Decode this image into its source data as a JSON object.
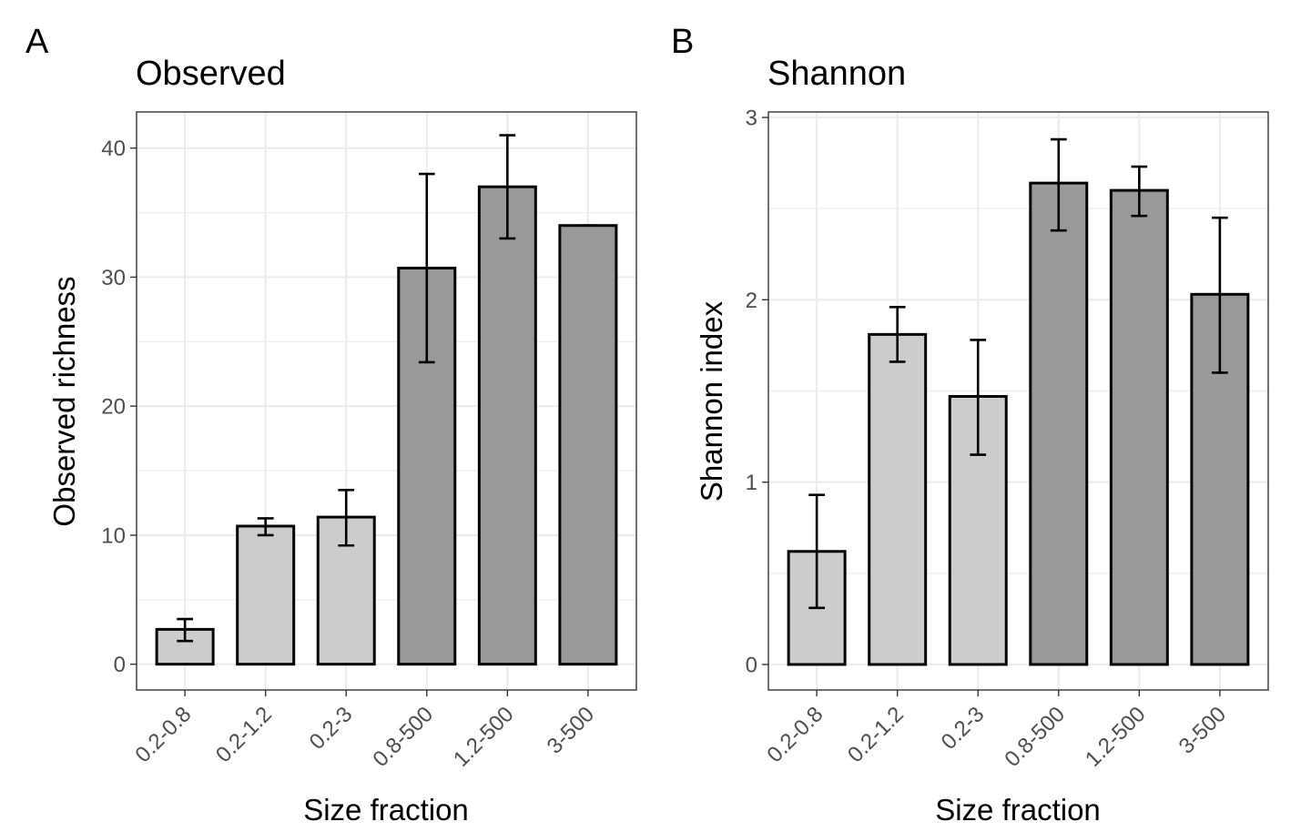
{
  "chart_data": [
    {
      "type": "bar",
      "panel_label": "A",
      "title": "Observed",
      "xlabel": "Size fraction",
      "ylabel": "Observed richness",
      "categories": [
        "0.2-0.8",
        "0.2-1.2",
        "0.2-3",
        "0.8-500",
        "1.2-500",
        "3-500"
      ],
      "values": [
        2.7,
        10.7,
        11.4,
        30.7,
        37.0,
        34.0
      ],
      "error_low": [
        1.8,
        10.0,
        9.2,
        23.4,
        33.0,
        34.0
      ],
      "error_high": [
        3.5,
        11.3,
        13.5,
        38.0,
        41.0,
        34.0
      ],
      "bar_colors": [
        "#cccccc",
        "#cccccc",
        "#cccccc",
        "#999999",
        "#999999",
        "#999999"
      ],
      "yticks": [
        0,
        10,
        20,
        30,
        40
      ],
      "ytick_labels": [
        "0",
        "10",
        "20",
        "30",
        "40"
      ],
      "ylim": [
        -2.0,
        42.8
      ],
      "grid": true
    },
    {
      "type": "bar",
      "panel_label": "B",
      "title": "Shannon",
      "xlabel": "Size fraction",
      "ylabel": "Shannon index",
      "categories": [
        "0.2-0.8",
        "0.2-1.2",
        "0.2-3",
        "0.8-500",
        "1.2-500",
        "3-500"
      ],
      "values": [
        0.62,
        1.81,
        1.47,
        2.64,
        2.6,
        2.03
      ],
      "error_low": [
        0.31,
        1.66,
        1.15,
        2.38,
        2.46,
        1.6
      ],
      "error_high": [
        0.93,
        1.96,
        1.78,
        2.88,
        2.73,
        2.45
      ],
      "bar_colors": [
        "#cccccc",
        "#cccccc",
        "#cccccc",
        "#999999",
        "#999999",
        "#999999"
      ],
      "yticks": [
        0,
        1,
        2,
        3
      ],
      "ytick_labels": [
        "0",
        "1",
        "2",
        "3"
      ],
      "ylim": [
        -0.14,
        3.03
      ],
      "grid": true
    }
  ]
}
